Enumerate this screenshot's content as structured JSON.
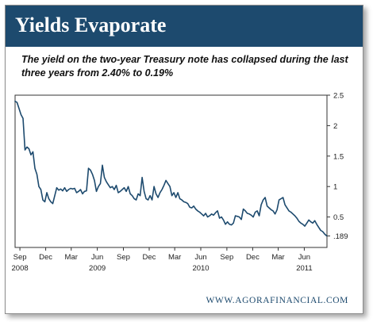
{
  "title": "Yields Evaporate",
  "subtitle": "The yield on the two-year Treasury note has collapsed during the last three years from 2.40% to 0.19%",
  "source": "WWW.AGORAFINANCIAL.COM",
  "colors": {
    "title_bar": "#1d4a6e",
    "line": "#1d4a6e"
  },
  "chart_data": {
    "type": "line",
    "title": "Yields Evaporate",
    "xlabel": "",
    "ylabel": "",
    "x_range": [
      "2008-08-15",
      "2011-08-20"
    ],
    "ylim": [
      0,
      2.5
    ],
    "grid": false,
    "y_ticks": [
      {
        "value": 2.5,
        "label": "2.5"
      },
      {
        "value": 2.0,
        "label": "2"
      },
      {
        "value": 1.5,
        "label": "1.5"
      },
      {
        "value": 1.0,
        "label": "1"
      },
      {
        "value": 0.5,
        "label": "0.5"
      },
      {
        "value": 0.189,
        "label": ".189"
      }
    ],
    "x_ticks": [
      {
        "date": "2008-09-01",
        "label": "Sep"
      },
      {
        "date": "2008-12-01",
        "label": "Dec"
      },
      {
        "date": "2009-03-01",
        "label": "Mar"
      },
      {
        "date": "2009-06-01",
        "label": "Jun"
      },
      {
        "date": "2009-09-01",
        "label": "Sep"
      },
      {
        "date": "2009-12-01",
        "label": "Dec"
      },
      {
        "date": "2010-03-01",
        "label": "Mar"
      },
      {
        "date": "2010-06-01",
        "label": "Jun"
      },
      {
        "date": "2010-09-01",
        "label": "Sep"
      },
      {
        "date": "2010-12-01",
        "label": "Dec"
      },
      {
        "date": "2011-03-01",
        "label": "Mar"
      },
      {
        "date": "2011-06-01",
        "label": "Jun"
      }
    ],
    "x_year_labels": [
      {
        "date": "2008-09-01",
        "label": "2008"
      },
      {
        "date": "2009-06-01",
        "label": "2009"
      },
      {
        "date": "2010-06-01",
        "label": "2010"
      },
      {
        "date": "2011-06-01",
        "label": "2011"
      }
    ],
    "series": [
      {
        "x": [
          "2008-08-15",
          "2008-08-22",
          "2008-08-29",
          "2008-09-05",
          "2008-09-12",
          "2008-09-19",
          "2008-09-26",
          "2008-10-03",
          "2008-10-10",
          "2008-10-17",
          "2008-10-24",
          "2008-10-31",
          "2008-11-07",
          "2008-11-14",
          "2008-11-21",
          "2008-11-28",
          "2008-12-05",
          "2008-12-12",
          "2008-12-19",
          "2008-12-26",
          "2009-01-02",
          "2009-01-09",
          "2009-01-16",
          "2009-01-23",
          "2009-01-30",
          "2009-02-06",
          "2009-02-13",
          "2009-02-20",
          "2009-02-27",
          "2009-03-06",
          "2009-03-13",
          "2009-03-20",
          "2009-03-27",
          "2009-04-03",
          "2009-04-10",
          "2009-04-17",
          "2009-04-24",
          "2009-05-01",
          "2009-05-08",
          "2009-05-15",
          "2009-05-22",
          "2009-05-29",
          "2009-06-05",
          "2009-06-12",
          "2009-06-19",
          "2009-06-26",
          "2009-07-03",
          "2009-07-10",
          "2009-07-17",
          "2009-07-24",
          "2009-07-31",
          "2009-08-07",
          "2009-08-14",
          "2009-08-21",
          "2009-08-28",
          "2009-09-04",
          "2009-09-11",
          "2009-09-18",
          "2009-09-25",
          "2009-10-02",
          "2009-10-09",
          "2009-10-16",
          "2009-10-23",
          "2009-10-30",
          "2009-11-06",
          "2009-11-13",
          "2009-11-20",
          "2009-11-27",
          "2009-12-04",
          "2009-12-11",
          "2009-12-18",
          "2009-12-25",
          "2010-01-01",
          "2010-01-08",
          "2010-01-15",
          "2010-01-22",
          "2010-01-29",
          "2010-02-05",
          "2010-02-12",
          "2010-02-19",
          "2010-02-26",
          "2010-03-05",
          "2010-03-12",
          "2010-03-19",
          "2010-03-26",
          "2010-04-02",
          "2010-04-09",
          "2010-04-16",
          "2010-04-23",
          "2010-04-30",
          "2010-05-07",
          "2010-05-14",
          "2010-05-21",
          "2010-05-28",
          "2010-06-04",
          "2010-06-11",
          "2010-06-18",
          "2010-06-25",
          "2010-07-02",
          "2010-07-09",
          "2010-07-16",
          "2010-07-23",
          "2010-07-30",
          "2010-08-06",
          "2010-08-13",
          "2010-08-20",
          "2010-08-27",
          "2010-09-03",
          "2010-09-10",
          "2010-09-17",
          "2010-09-24",
          "2010-10-01",
          "2010-10-08",
          "2010-10-15",
          "2010-10-22",
          "2010-10-29",
          "2010-11-05",
          "2010-11-12",
          "2010-11-19",
          "2010-11-26",
          "2010-12-03",
          "2010-12-10",
          "2010-12-17",
          "2010-12-24",
          "2010-12-31",
          "2011-01-07",
          "2011-01-14",
          "2011-01-21",
          "2011-01-28",
          "2011-02-04",
          "2011-02-11",
          "2011-02-18",
          "2011-02-25",
          "2011-03-04",
          "2011-03-11",
          "2011-03-18",
          "2011-03-25",
          "2011-04-01",
          "2011-04-08",
          "2011-04-15",
          "2011-04-22",
          "2011-04-29",
          "2011-05-06",
          "2011-05-13",
          "2011-05-20",
          "2011-05-27",
          "2011-06-03",
          "2011-06-10",
          "2011-06-17",
          "2011-06-24",
          "2011-07-01",
          "2011-07-08",
          "2011-07-15",
          "2011-07-22",
          "2011-07-29",
          "2011-08-05",
          "2011-08-12",
          "2011-08-19"
        ],
        "y": [
          2.4,
          2.38,
          2.28,
          2.18,
          2.12,
          1.6,
          1.65,
          1.62,
          1.52,
          1.57,
          1.3,
          1.2,
          1.0,
          0.95,
          0.78,
          0.75,
          0.9,
          0.8,
          0.75,
          0.72,
          0.85,
          0.98,
          0.94,
          0.96,
          0.93,
          0.98,
          0.92,
          0.95,
          0.97,
          0.96,
          0.97,
          0.9,
          0.92,
          0.95,
          0.88,
          0.92,
          0.93,
          1.3,
          1.27,
          1.2,
          1.1,
          0.92,
          1.0,
          1.05,
          1.35,
          1.15,
          1.08,
          1.03,
          0.98,
          1.0,
          0.95,
          1.02,
          0.9,
          0.92,
          0.95,
          0.98,
          0.92,
          1.0,
          0.88,
          0.85,
          0.8,
          0.78,
          0.88,
          0.85,
          1.15,
          0.92,
          0.8,
          0.78,
          0.85,
          0.78,
          1.0,
          0.88,
          0.82,
          0.9,
          0.95,
          1.02,
          1.1,
          1.05,
          1.0,
          0.85,
          0.9,
          0.82,
          0.9,
          0.8,
          0.78,
          0.75,
          0.74,
          0.72,
          0.66,
          0.65,
          0.68,
          0.63,
          0.6,
          0.58,
          0.55,
          0.52,
          0.56,
          0.5,
          0.52,
          0.55,
          0.53,
          0.57,
          0.6,
          0.48,
          0.5,
          0.45,
          0.38,
          0.42,
          0.38,
          0.37,
          0.4,
          0.52,
          0.51,
          0.5,
          0.46,
          0.63,
          0.6,
          0.56,
          0.55,
          0.53,
          0.5,
          0.58,
          0.6,
          0.52,
          0.7,
          0.78,
          0.82,
          0.68,
          0.65,
          0.62,
          0.6,
          0.55,
          0.62,
          0.78,
          0.8,
          0.82,
          0.7,
          0.65,
          0.6,
          0.58,
          0.55,
          0.52,
          0.48,
          0.43,
          0.4,
          0.38,
          0.35,
          0.4,
          0.45,
          0.42,
          0.4,
          0.44,
          0.38,
          0.33,
          0.28,
          0.26,
          0.22,
          0.19
        ]
      }
    ]
  }
}
